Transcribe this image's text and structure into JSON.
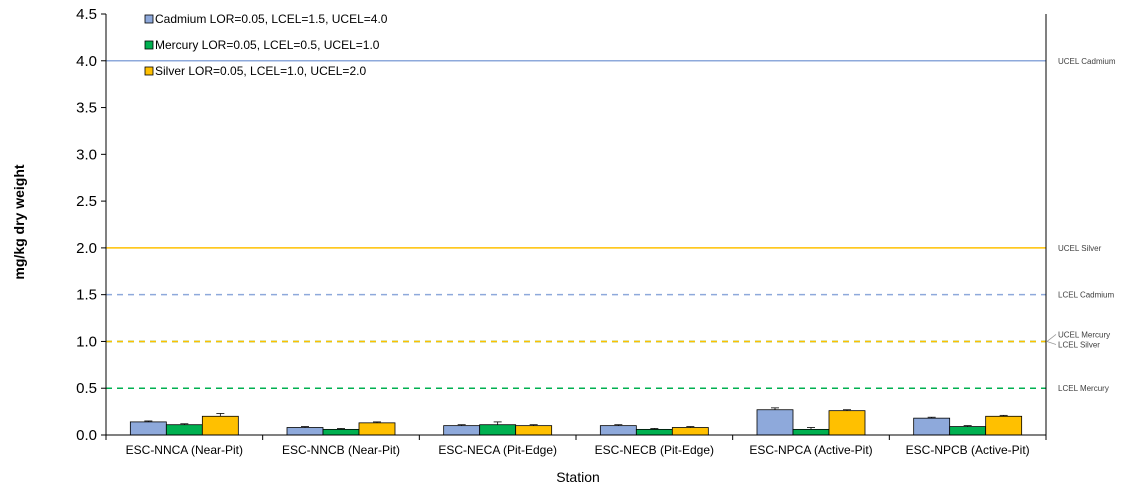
{
  "chart_data": {
    "type": "bar",
    "title": "",
    "xlabel": "Station",
    "ylabel": "mg/kg dry weight",
    "ylim": [
      0,
      4.5
    ],
    "yticks": [
      "0.0",
      "0.5",
      "1.0",
      "1.5",
      "2.0",
      "2.5",
      "3.0",
      "3.5",
      "4.0",
      "4.5"
    ],
    "grid": false,
    "legend_position": "top-left",
    "categories": [
      "ESC-NNCA (Near-Pit)",
      "ESC-NNCB (Near-Pit)",
      "ESC-NECA (Pit-Edge)",
      "ESC-NECB (Pit-Edge)",
      "ESC-NPCA (Active-Pit)",
      "ESC-NPCB (Active-Pit)"
    ],
    "series": [
      {
        "name": "Cadmium LOR=0.05, LCEL=1.5, UCEL=4.0",
        "color": "#8EA9DB",
        "values": [
          0.14,
          0.08,
          0.1,
          0.1,
          0.27,
          0.18
        ],
        "errors": [
          0.01,
          0.01,
          0.01,
          0.01,
          0.02,
          0.01
        ]
      },
      {
        "name": "Mercury LOR=0.05, LCEL=0.5, UCEL=1.0",
        "color": "#00B050",
        "values": [
          0.11,
          0.06,
          0.11,
          0.06,
          0.06,
          0.09
        ],
        "errors": [
          0.01,
          0.01,
          0.03,
          0.01,
          0.02,
          0.01
        ]
      },
      {
        "name": "Silver LOR=0.05, LCEL=1.0, UCEL=2.0",
        "color": "#FFC000",
        "values": [
          0.2,
          0.13,
          0.1,
          0.08,
          0.26,
          0.2
        ],
        "errors": [
          0.03,
          0.01,
          0.01,
          0.01,
          0.01,
          0.01
        ]
      }
    ],
    "reference_lines": [
      {
        "label": "UCEL Cadmium",
        "value": 4.0,
        "color": "#8EA9DB",
        "style": "solid"
      },
      {
        "label": "UCEL Silver",
        "value": 2.0,
        "color": "#FFC000",
        "style": "solid"
      },
      {
        "label": "LCEL Cadmium",
        "value": 1.5,
        "color": "#8EA9DB",
        "style": "dashed"
      },
      {
        "label": "UCEL Mercury",
        "value": 1.0,
        "color": "#00B050",
        "style": "dashed"
      },
      {
        "label": "LCEL Silver",
        "value": 1.0,
        "color": "#FFC000",
        "style": "dashed"
      },
      {
        "label": "LCEL Mercury",
        "value": 0.5,
        "color": "#00B050",
        "style": "dashed"
      }
    ]
  }
}
